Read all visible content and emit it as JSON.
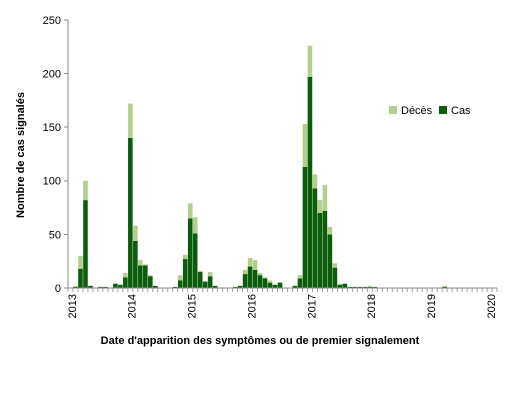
{
  "chart_data": {
    "type": "bar",
    "stacked": true,
    "xlabel": "Date d'apparition des symptômes ou de premier signalement",
    "ylabel": "Nombre de cas signalés",
    "ylim": [
      0,
      250
    ],
    "yticks": [
      0,
      50,
      100,
      150,
      200,
      250
    ],
    "xticks": [
      "2013",
      "2014",
      "2015",
      "2016",
      "2017",
      "2018",
      "2019",
      "2020"
    ],
    "grid": false,
    "legend": "top-right",
    "series": [
      {
        "name": "Cas",
        "color": "#0b5d0b",
        "values": [
          0,
          1,
          18,
          82,
          2,
          0,
          1,
          1,
          0,
          4,
          3,
          10,
          140,
          44,
          21,
          21,
          11,
          2,
          0,
          0,
          0,
          1,
          7,
          27,
          65,
          51,
          15,
          6,
          11,
          2,
          0,
          0,
          0,
          1,
          2,
          13,
          20,
          17,
          12,
          9,
          5,
          3,
          5,
          0,
          0,
          2,
          9,
          113,
          197,
          93,
          70,
          72,
          50,
          19,
          3,
          4,
          1,
          1,
          1,
          1,
          1,
          1,
          0,
          0,
          0,
          0,
          0,
          0,
          0,
          0,
          0,
          0,
          0,
          0,
          0,
          1,
          0,
          0,
          0,
          0,
          0,
          0,
          0,
          0,
          0,
          0
        ]
      },
      {
        "name": "Décès",
        "color": "#b3cf8e",
        "values": [
          0,
          1,
          12,
          18,
          0,
          0,
          0,
          0,
          0,
          0,
          0,
          4,
          32,
          14,
          5,
          1,
          1,
          0,
          0,
          0,
          0,
          0,
          5,
          4,
          14,
          15,
          1,
          0,
          4,
          0,
          0,
          0,
          0,
          0,
          0,
          4,
          8,
          9,
          2,
          1,
          2,
          0,
          0,
          0,
          0,
          0,
          3,
          40,
          29,
          13,
          12,
          24,
          7,
          4,
          1,
          0,
          0,
          0,
          0,
          0,
          1,
          0,
          0,
          0,
          0,
          0,
          0,
          0,
          0,
          0,
          0,
          0,
          0,
          0,
          0,
          1,
          0,
          0,
          0,
          0,
          0,
          0,
          0,
          0,
          0,
          0
        ]
      }
    ]
  }
}
